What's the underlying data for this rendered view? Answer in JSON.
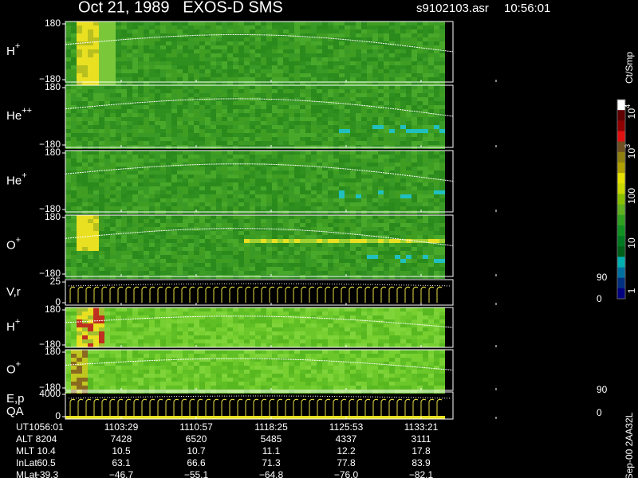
{
  "header": {
    "title": "Oct 21, 1989   EXOS-D SMS",
    "file": "s9102103.asr",
    "time": "10:56:01"
  },
  "panels": [
    {
      "label": "H",
      "sup": "+",
      "top": "180",
      "bottom": "−180"
    },
    {
      "label": "He",
      "sup": "++",
      "top": "180",
      "bottom": "−180"
    },
    {
      "label": "He",
      "sup": "+",
      "top": "180",
      "bottom": "−180"
    },
    {
      "label": "O",
      "sup": "+",
      "top": "180",
      "bottom": "−180"
    },
    {
      "label": "V,r",
      "top": "25",
      "bottom": "0",
      "right_top": "90",
      "right_bottom": "0"
    },
    {
      "label": "H",
      "sup": "+",
      "top": "180",
      "bottom": "−180"
    },
    {
      "label": "O",
      "sup": "+",
      "top": "180",
      "bottom": "−180"
    },
    {
      "label": "E,p",
      "label2": "QA",
      "top": "4000",
      "bottom": "0",
      "right_top": "90",
      "right_bottom": "0"
    }
  ],
  "colorbar": {
    "title": "Ct/Smp",
    "labels": [
      {
        "base": "10",
        "exp": "4"
      },
      {
        "base": "10",
        "exp": "3"
      },
      {
        "base": "100"
      },
      {
        "base": "10"
      },
      {
        "base": "1"
      }
    ]
  },
  "table": {
    "rows": [
      [
        "UT",
        "1056:01",
        "1103:29",
        "1110:57",
        "1118:25",
        "1125:53",
        "1133:21"
      ],
      [
        "ALT",
        "8204",
        "7428",
        "6520",
        "5485",
        "4337",
        "3111"
      ],
      [
        "MLT",
        "10.4",
        "10.5",
        "10.7",
        "11.1",
        "12.2",
        "17.8"
      ],
      [
        "InLat",
        "60.5",
        "63.1",
        "66.6",
        "71.3",
        "77.8",
        "83.9"
      ],
      [
        "MLat",
        "−39.3",
        "−46.7",
        "−55.1",
        "−64.8",
        "−76.0",
        "−82.1"
      ]
    ]
  },
  "footer": "Sep-00 2AA32L"
}
